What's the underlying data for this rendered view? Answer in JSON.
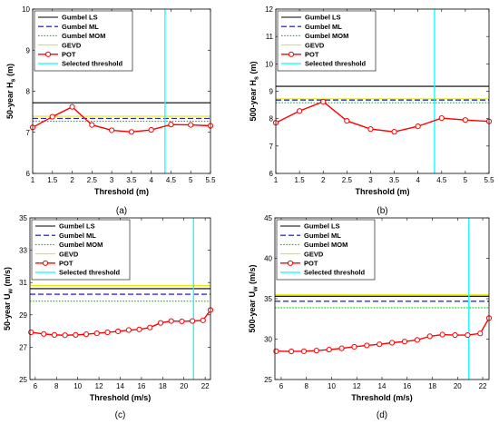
{
  "colors": {
    "gumbel_ls": "#000000",
    "gumbel_ml": "#0000ff",
    "gumbel_mom": "#00d000",
    "gevd": "#e8e800",
    "pot": "#ff0000",
    "threshold": "#00ffff"
  },
  "chart_data": [
    {
      "type": "line",
      "panel_label": "(a)",
      "xlabel": "Threshold (m)",
      "ylabel": "50-year H",
      "ylabel_sub": "s",
      "ylabel_unit": " (m)",
      "xlim": [
        1,
        5.5
      ],
      "ylim": [
        6,
        10
      ],
      "xticks": [
        1,
        1.5,
        2,
        2.5,
        3,
        3.5,
        4,
        4.5,
        5,
        5.5
      ],
      "yticks": [
        6,
        7,
        8,
        9,
        10
      ],
      "legend": [
        "Gumbel LS",
        "Gumbel ML",
        "Gumbel MOM",
        "GEVD",
        "POT",
        "Selected threshold"
      ],
      "legend_placement": "top-left",
      "hlines": {
        "Gumbel LS": 7.72,
        "Gumbel ML": 7.34,
        "Gumbel MOM": 7.27,
        "GEVD": 7.39
      },
      "selected_threshold": 4.35,
      "pot": {
        "x": [
          1,
          1.5,
          2,
          2.5,
          3,
          3.5,
          4,
          4.5,
          5,
          5.5
        ],
        "y": [
          7.12,
          7.38,
          7.62,
          7.18,
          7.05,
          7.01,
          7.06,
          7.19,
          7.18,
          7.16
        ]
      }
    },
    {
      "type": "line",
      "panel_label": "(b)",
      "xlabel": "Threshold (m)",
      "ylabel": "500-year H",
      "ylabel_sub": "s",
      "ylabel_unit": " (m)",
      "xlim": [
        1,
        5.5
      ],
      "ylim": [
        6,
        12
      ],
      "xticks": [
        1,
        1.5,
        2,
        2.5,
        3,
        3.5,
        4,
        4.5,
        5,
        5.5
      ],
      "yticks": [
        6,
        7,
        8,
        9,
        10,
        11,
        12
      ],
      "legend": [
        "Gumbel LS",
        "Gumbel ML",
        "Gumbel MOM",
        "GEVD",
        "POT",
        "Selected threshold"
      ],
      "legend_placement": "top-left",
      "hlines": {
        "Gumbel LS": 9.18,
        "Gumbel ML": 8.68,
        "Gumbel MOM": 8.58,
        "GEVD": 8.72
      },
      "selected_threshold": 4.35,
      "pot": {
        "x": [
          1,
          1.5,
          2,
          2.5,
          3,
          3.5,
          4,
          4.5,
          5,
          5.5
        ],
        "y": [
          7.85,
          8.28,
          8.62,
          7.92,
          7.62,
          7.52,
          7.72,
          8.02,
          7.95,
          7.9
        ]
      }
    },
    {
      "type": "line",
      "panel_label": "(c)",
      "xlabel": "Threshold (m/s)",
      "ylabel": "50-year U",
      "ylabel_sub": "w",
      "ylabel_unit": " (m/s)",
      "xlim": [
        5.5,
        22.5
      ],
      "ylim": [
        25,
        35
      ],
      "xticks": [
        6,
        8,
        10,
        12,
        14,
        16,
        18,
        20,
        22
      ],
      "yticks": [
        25,
        27,
        29,
        31,
        33,
        35
      ],
      "legend": [
        "Gumbel LS",
        "Gumbel ML",
        "Gumbel MOM",
        "GEVD",
        "POT",
        "Selected threshold"
      ],
      "legend_placement": "top-left",
      "hlines": {
        "Gumbel LS": 30.62,
        "Gumbel ML": 30.28,
        "Gumbel MOM": 29.85,
        "GEVD": 30.82
      },
      "selected_threshold": 20.9,
      "pot": {
        "x": [
          5.6,
          6.8,
          7.8,
          8.8,
          9.8,
          10.8,
          11.8,
          12.8,
          13.8,
          14.8,
          15.8,
          16.8,
          17.8,
          18.8,
          19.8,
          20.8,
          21.8,
          22.5
        ],
        "y": [
          27.92,
          27.82,
          27.76,
          27.74,
          27.76,
          27.8,
          27.86,
          27.92,
          27.98,
          28.06,
          28.1,
          28.22,
          28.5,
          28.62,
          28.6,
          28.62,
          28.66,
          29.3
        ]
      }
    },
    {
      "type": "line",
      "panel_label": "(d)",
      "xlabel": "Threshold (m/s)",
      "ylabel": "500-year U",
      "ylabel_sub": "w",
      "ylabel_unit": " (m/s)",
      "xlim": [
        5.5,
        22.5
      ],
      "ylim": [
        25,
        45
      ],
      "xticks": [
        6,
        8,
        10,
        12,
        14,
        16,
        18,
        20,
        22
      ],
      "yticks": [
        25,
        30,
        35,
        40,
        45
      ],
      "legend": [
        "Gumbel LS",
        "Gumbel ML",
        "Gumbel MOM",
        "GEVD",
        "POT",
        "Selected threshold"
      ],
      "legend_placement": "top-left",
      "hlines": {
        "Gumbel LS": 35.3,
        "Gumbel ML": 34.68,
        "Gumbel MOM": 33.88,
        "GEVD": 35.48
      },
      "selected_threshold": 20.9,
      "pot": {
        "x": [
          5.6,
          6.8,
          7.8,
          8.8,
          9.8,
          10.8,
          11.8,
          12.8,
          13.8,
          14.8,
          15.8,
          16.8,
          17.8,
          18.8,
          19.8,
          20.8,
          21.8,
          22.5
        ],
        "y": [
          28.5,
          28.48,
          28.5,
          28.58,
          28.7,
          28.86,
          29.05,
          29.22,
          29.36,
          29.55,
          29.7,
          29.9,
          30.35,
          30.56,
          30.5,
          30.5,
          30.7,
          32.6
        ]
      }
    }
  ]
}
